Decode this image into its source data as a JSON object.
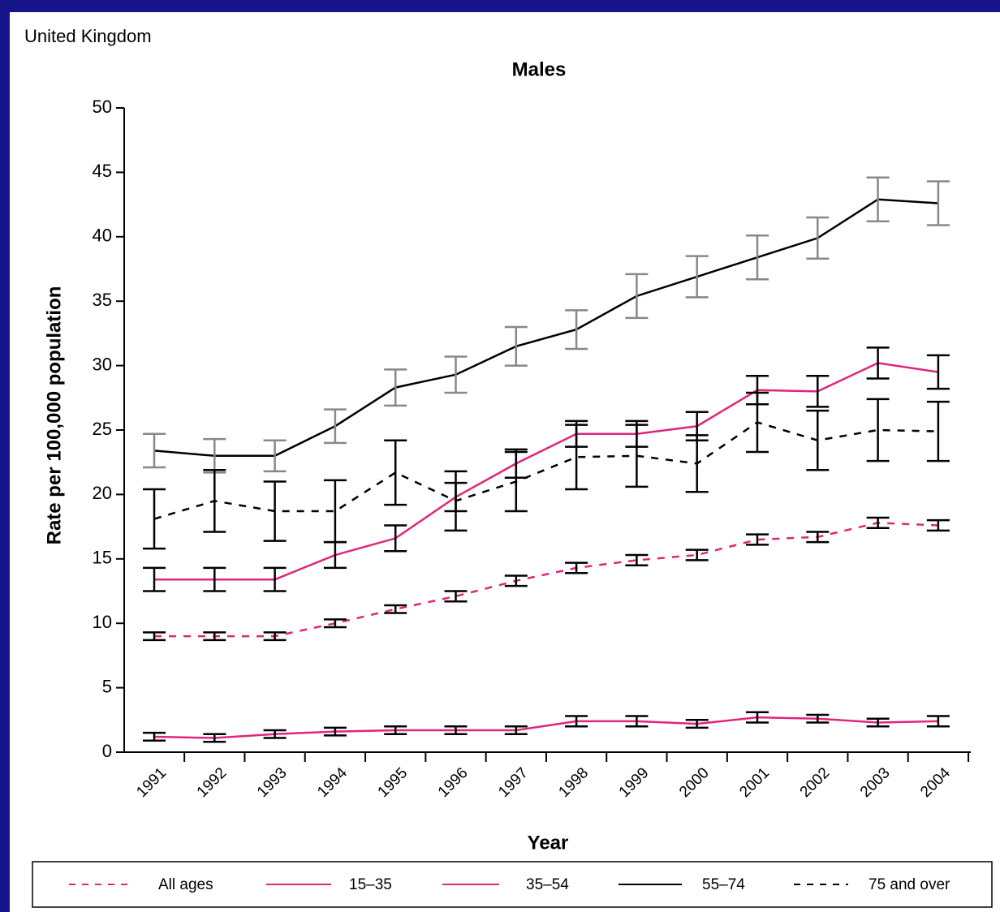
{
  "chart_data": {
    "type": "line",
    "subtitle": "United Kingdom",
    "title": "Males",
    "x_label": "Year",
    "y_label": "Rate per 100,000 population",
    "categories": [
      "1991",
      "1992",
      "1993",
      "1994",
      "1995",
      "1996",
      "1997",
      "1998",
      "1999",
      "2000",
      "2001",
      "2002",
      "2003",
      "2004"
    ],
    "ylim": [
      0,
      50
    ],
    "yticks": [
      0,
      5,
      10,
      15,
      20,
      25,
      30,
      35,
      40,
      45,
      50
    ],
    "series": [
      {
        "name": "All ages",
        "color": "#e0267a",
        "dashed": true,
        "error_color": "#000000",
        "values": [
          9.0,
          9.0,
          9.0,
          10.0,
          11.1,
          12.1,
          13.3,
          14.3,
          14.9,
          15.3,
          16.5,
          16.7,
          17.8,
          17.6
        ],
        "errors": [
          0.3,
          0.3,
          0.3,
          0.3,
          0.3,
          0.4,
          0.4,
          0.4,
          0.4,
          0.4,
          0.4,
          0.4,
          0.4,
          0.4
        ]
      },
      {
        "name": "15–35",
        "color": "#e0267a",
        "dashed": false,
        "error_color": "#000000",
        "values": [
          1.2,
          1.1,
          1.4,
          1.6,
          1.7,
          1.7,
          1.7,
          2.4,
          2.4,
          2.2,
          2.7,
          2.6,
          2.3,
          2.4
        ],
        "errors": [
          0.3,
          0.3,
          0.3,
          0.3,
          0.3,
          0.3,
          0.3,
          0.4,
          0.4,
          0.3,
          0.4,
          0.3,
          0.3,
          0.4
        ]
      },
      {
        "name": "35–54",
        "color": "#e0267a",
        "dashed": false,
        "error_color": "#000000",
        "values": [
          13.4,
          13.4,
          13.4,
          15.3,
          16.6,
          19.8,
          22.4,
          24.7,
          24.7,
          25.3,
          28.1,
          28.0,
          30.2,
          29.5
        ],
        "errors": [
          0.9,
          0.9,
          0.9,
          1.0,
          1.0,
          1.1,
          1.1,
          1.0,
          1.0,
          1.1,
          1.1,
          1.2,
          1.2,
          1.3
        ]
      },
      {
        "name": "55–74",
        "color": "#000000",
        "dashed": false,
        "error_color": "#888888",
        "values": [
          23.4,
          23.0,
          23.0,
          25.3,
          28.3,
          29.3,
          31.5,
          32.8,
          35.4,
          36.9,
          38.4,
          39.9,
          42.9,
          42.6
        ],
        "errors": [
          1.3,
          1.3,
          1.2,
          1.3,
          1.4,
          1.4,
          1.5,
          1.5,
          1.7,
          1.6,
          1.7,
          1.6,
          1.7,
          1.7
        ]
      },
      {
        "name": "75 and over",
        "color": "#000000",
        "dashed": true,
        "error_color": "#000000",
        "values": [
          18.1,
          19.5,
          18.7,
          18.7,
          21.7,
          19.5,
          21.0,
          22.9,
          23.0,
          22.4,
          25.6,
          24.2,
          25.0,
          24.9
        ],
        "errors": [
          2.3,
          2.4,
          2.3,
          2.4,
          2.5,
          2.3,
          2.3,
          2.5,
          2.4,
          2.2,
          2.3,
          2.3,
          2.4,
          2.3
        ]
      }
    ]
  }
}
